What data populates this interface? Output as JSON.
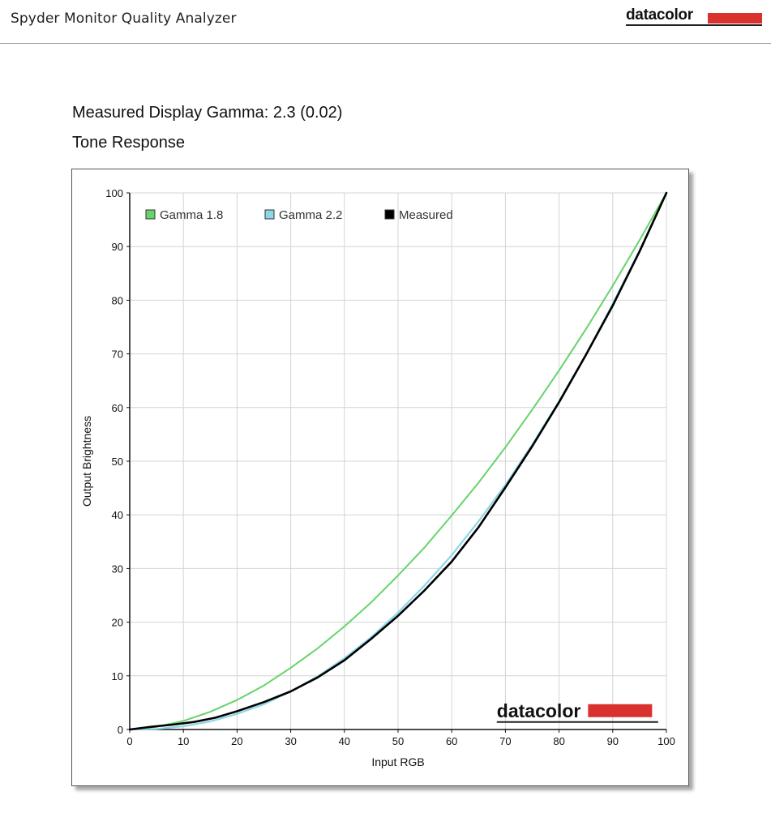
{
  "app": {
    "title": "Spyder Monitor Quality Analyzer",
    "brand": "datacolor",
    "brand_color": "#d9322e"
  },
  "report": {
    "heading": "Measured Display Gamma: 2.3 (0.02)",
    "subheading": "Tone Response"
  },
  "chart_data": {
    "type": "line",
    "title": "",
    "xlabel": "Input RGB",
    "ylabel": "Output Brightness",
    "xlim": [
      0,
      100
    ],
    "ylim": [
      0,
      100
    ],
    "x_ticks": [
      "0",
      "10",
      "20",
      "30",
      "40",
      "50",
      "60",
      "70",
      "80",
      "90",
      "100"
    ],
    "y_ticks": [
      "0",
      "10",
      "20",
      "30",
      "40",
      "50",
      "60",
      "70",
      "80",
      "90",
      "100"
    ],
    "grid": true,
    "legend_position": "top-left",
    "watermark": "datacolor",
    "series": [
      {
        "name": "Gamma 1.8",
        "color": "#66d36b",
        "x": [
          0,
          5,
          10,
          15,
          20,
          25,
          30,
          35,
          40,
          45,
          50,
          55,
          60,
          65,
          70,
          75,
          80,
          85,
          90,
          95,
          100
        ],
        "y": [
          0,
          0.5,
          1.6,
          3.3,
          5.5,
          8.2,
          11.5,
          15.1,
          19.2,
          23.7,
          28.7,
          34.0,
          39.9,
          46.0,
          52.6,
          59.6,
          66.9,
          74.6,
          82.7,
          91.2,
          100
        ]
      },
      {
        "name": "Gamma 2.2",
        "color": "#8fd6e8",
        "x": [
          0,
          5,
          10,
          15,
          20,
          25,
          30,
          35,
          40,
          45,
          50,
          55,
          60,
          65,
          70,
          75,
          80,
          85,
          90,
          95,
          100
        ],
        "y": [
          0,
          0.1,
          0.6,
          1.5,
          2.9,
          4.7,
          7.1,
          9.9,
          13.3,
          17.2,
          21.8,
          26.9,
          32.5,
          38.8,
          45.6,
          53.1,
          61.2,
          69.9,
          79.3,
          89.3,
          100
        ]
      },
      {
        "name": "Measured",
        "color": "#000000",
        "x": [
          0,
          4,
          8,
          12,
          16,
          20,
          25,
          30,
          35,
          40,
          45,
          50,
          55,
          60,
          65,
          70,
          75,
          80,
          85,
          90,
          95,
          100
        ],
        "y": [
          0,
          0.5,
          0.9,
          1.4,
          2.2,
          3.4,
          5.1,
          7.1,
          9.7,
          12.9,
          16.9,
          21.2,
          26.0,
          31.3,
          37.7,
          45.1,
          52.8,
          61.0,
          69.8,
          79.0,
          89.1,
          100
        ]
      }
    ]
  }
}
